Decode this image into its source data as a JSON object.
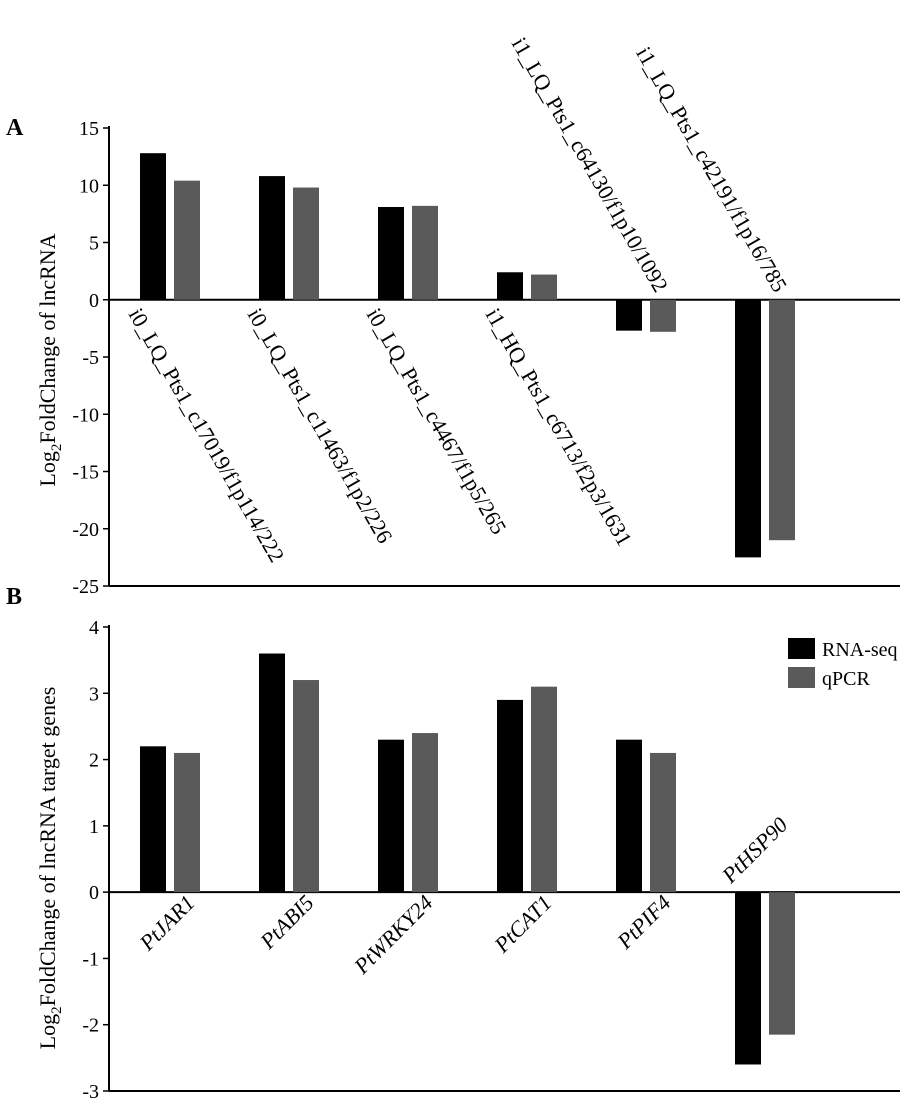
{
  "colors": {
    "rnaseq": "#000000",
    "qpcr": "#5a5a5a",
    "axis": "#000000"
  },
  "legend": {
    "items": [
      {
        "label": "RNA-seq",
        "color": "#000000"
      },
      {
        "label": "qPCR",
        "color": "#5a5a5a"
      }
    ],
    "placement": "top-right of panel B"
  },
  "chart_data": [
    {
      "panel": "A",
      "type": "bar",
      "ylabel_main": "Log",
      "ylabel_sub": "2",
      "ylabel_rest": "FoldChange of lncRNA",
      "ylim": [
        -25,
        15
      ],
      "yticks": [
        15,
        10,
        5,
        0,
        -5,
        -10,
        -15,
        -20,
        -25
      ],
      "categories": [
        "i0_LQ_Pts1_c17019/f1p114/222",
        "i0_LQ_Pts1_c11463/f1p2/226",
        "i0_LQ_Pts1_c4467/f1p5/265",
        "i1_HQ_Pts1_c6713/f2p3/1631",
        "i1_LQ_Pts1_c64130/f1p10/1092",
        "i1_LQ_Pts1_c42191/f1p16/785"
      ],
      "series": [
        {
          "name": "RNA-seq",
          "values": [
            12.8,
            10.8,
            8.1,
            2.4,
            -2.7,
            -22.5
          ]
        },
        {
          "name": "qPCR",
          "values": [
            10.4,
            9.8,
            8.2,
            2.2,
            -2.8,
            -21.0
          ]
        }
      ],
      "grid": false
    },
    {
      "panel": "B",
      "type": "bar",
      "ylabel_main": "Log",
      "ylabel_sub": "2",
      "ylabel_rest": "FoldChange of lncRNA target genes",
      "ylim": [
        -3,
        4
      ],
      "yticks": [
        4,
        3,
        2,
        1,
        0,
        -1,
        -2,
        -3
      ],
      "categories": [
        "PtJAR1",
        "PtABI5",
        "PtWRKY24",
        "PtCAT1",
        "PtPIF4",
        "PtHSP90"
      ],
      "series": [
        {
          "name": "RNA-seq",
          "values": [
            2.2,
            3.6,
            2.3,
            2.9,
            2.3,
            -2.6
          ]
        },
        {
          "name": "qPCR",
          "values": [
            2.1,
            3.2,
            2.4,
            3.1,
            2.1,
            -2.15
          ]
        }
      ],
      "grid": false
    }
  ]
}
